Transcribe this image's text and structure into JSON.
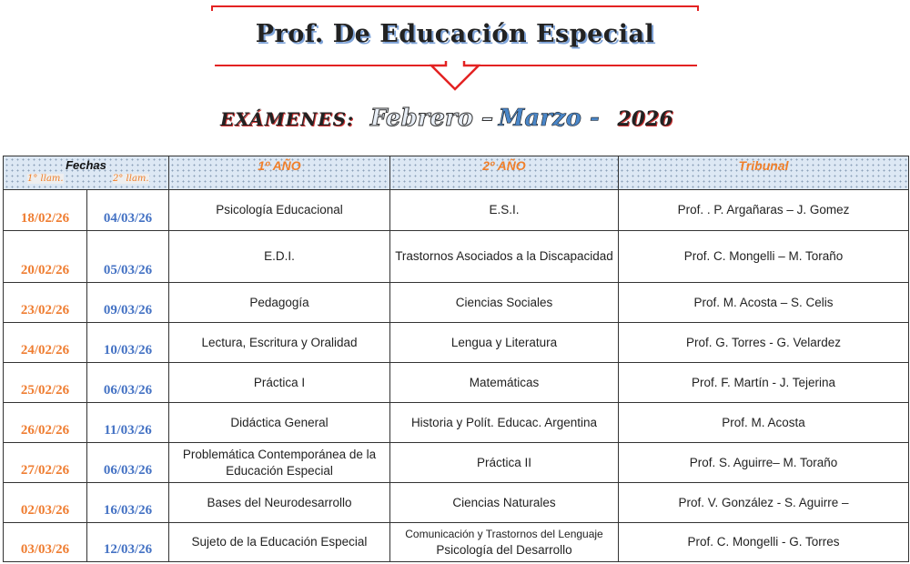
{
  "header": {
    "title": "Prof.  De Educación  Especial",
    "subtitle_label": "EXÁMENES:",
    "month1": "Febrero –",
    "month2": "Marzo -",
    "year": "2026"
  },
  "colors": {
    "first_call": "#ef7d31",
    "second_call": "#4472c4",
    "banner_line": "#e32222"
  },
  "table": {
    "headers": {
      "fechas": "Fechas",
      "first_call": "1° llam.",
      "second_call": "2° llam.",
      "year1": "1º AÑO",
      "year2": "2º AÑO",
      "tribunal": "Tribunal"
    },
    "rows": [
      {
        "d1": "18/02/26",
        "d2": "04/03/26",
        "y1": "Psicología Educacional",
        "y2": "E.S.I.",
        "tribunal": "Prof. . P. Argañaras  –  J. Gomez"
      },
      {
        "d1": "20/02/26",
        "d2": "05/03/26",
        "y1": "E.D.I.",
        "y2": "Trastornos Asociados a la Discapacidad",
        "tribunal": "Prof. C. Mongelli –  M. Toraño"
      },
      {
        "d1": "23/02/26",
        "d2": "09/03/26",
        "y1": "Pedagogía",
        "y2": "Ciencias Sociales",
        "tribunal": "Prof. M. Acosta –  S. Celis"
      },
      {
        "d1": "24/02/26",
        "d2": "10/03/26",
        "y1": "Lectura, Escritura y Oralidad",
        "y2": "Lengua y Literatura",
        "tribunal": "Prof. G. Torres - G. Velardez"
      },
      {
        "d1": "25/02/26",
        "d2": "06/03/26",
        "y1": "Práctica I",
        "y2": "Matemáticas",
        "tribunal": "Prof.  F. Martín -  J. Tejerina"
      },
      {
        "d1": "26/02/26",
        "d2": "11/03/26",
        "y1": "Didáctica General",
        "y2": "Historia y Polít. Educac. Argentina",
        "tribunal": "Prof.  M. Acosta"
      },
      {
        "d1": "27/02/26",
        "d2": "06/03/26",
        "y1": "Problemática Contemporánea de la Educación Especial",
        "y2": "Práctica II",
        "tribunal": "Prof. S. Aguirre– M. Toraño"
      },
      {
        "d1": "02/03/26",
        "d2": "16/03/26",
        "y1": "Bases del Neurodesarrollo",
        "y2": "Ciencias Naturales",
        "tribunal": "Prof. V. González - S. Aguirre –"
      },
      {
        "d1": "03/03/26",
        "d2": "12/03/26",
        "y1": "Sujeto de la Educación Especial",
        "y2a": "Comunicación y Trastornos del Lenguaje",
        "y2": "Psicología del Desarrollo",
        "tribunal": "Prof. C. Mongelli - G. Torres"
      }
    ]
  }
}
